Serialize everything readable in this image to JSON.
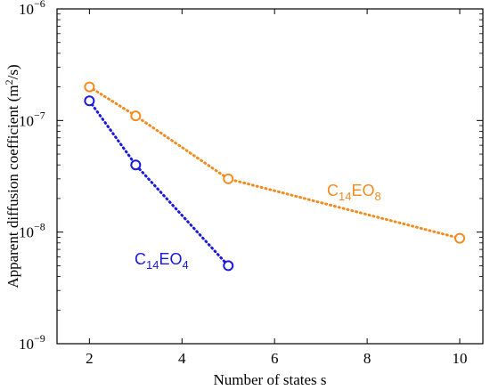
{
  "chart_data": {
    "type": "line",
    "title": "",
    "xlabel": "Number of states s",
    "ylabel_main": "Apparent diffusion coefficient (m",
    "ylabel_sup": "2",
    "ylabel_end": "/s)",
    "x_scale": "linear",
    "y_scale": "log",
    "xlim": [
      1.3,
      10.5
    ],
    "ylim": [
      1e-09,
      1e-06
    ],
    "x_ticks": [
      2,
      4,
      6,
      8,
      10
    ],
    "x_tick_labels": [
      "2",
      "4",
      "6",
      "8",
      "10"
    ],
    "y_ticks": [
      1e-09,
      1e-08,
      1e-07,
      1e-06
    ],
    "y_tick_labels": [
      {
        "base": "10",
        "exp": "−9"
      },
      {
        "base": "10",
        "exp": "−8"
      },
      {
        "base": "10",
        "exp": "−7"
      },
      {
        "base": "10",
        "exp": "−6"
      }
    ],
    "grid": false,
    "legend": "none",
    "series": [
      {
        "id": "eo8",
        "label_parts": {
          "base": "C",
          "sub1": "14",
          "mid": "EO",
          "sub2": "8"
        },
        "color": "#F58A1F",
        "x": [
          2,
          3,
          5,
          10
        ],
        "y": [
          2e-07,
          1.1e-07,
          3e-08,
          8.8e-09
        ]
      },
      {
        "id": "eo4",
        "label_parts": {
          "base": "C",
          "sub1": "14",
          "mid": "EO",
          "sub2": "4"
        },
        "color": "#1A1ADB",
        "x": [
          2,
          3,
          5
        ],
        "y": [
          1.5e-07,
          4e-08,
          5e-09
        ]
      }
    ]
  }
}
